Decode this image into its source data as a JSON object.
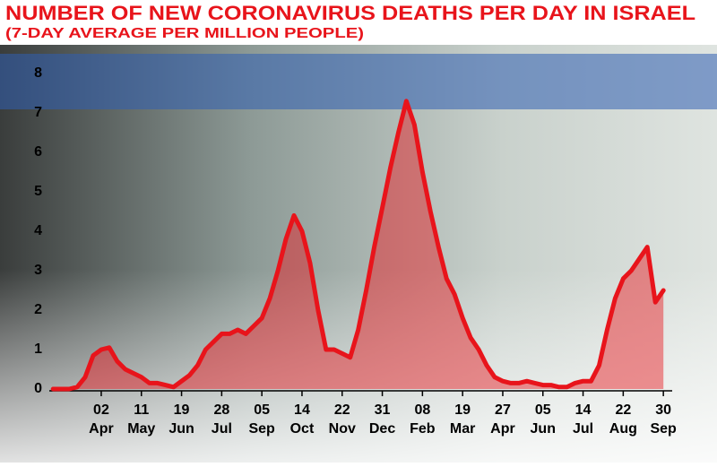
{
  "chart_data": {
    "type": "area",
    "title": "NUMBER OF NEW CORONAVIRUS DEATHS PER DAY IN ISRAEL",
    "subtitle": "(7-DAY AVERAGE PER MILLION PEOPLE)",
    "categories": [
      null,
      null,
      null,
      null,
      null,
      null,
      {
        "day": "02",
        "month": "Apr"
      },
      null,
      null,
      null,
      null,
      {
        "day": "11",
        "month": "May"
      },
      null,
      null,
      null,
      null,
      {
        "day": "19",
        "month": "Jun"
      },
      null,
      null,
      null,
      null,
      {
        "day": "28",
        "month": "Jul"
      },
      null,
      null,
      null,
      null,
      {
        "day": "05",
        "month": "Sep"
      },
      null,
      null,
      null,
      null,
      {
        "day": "14",
        "month": "Oct"
      },
      null,
      null,
      null,
      null,
      {
        "day": "22",
        "month": "Nov"
      },
      null,
      null,
      null,
      null,
      {
        "day": "31",
        "month": "Dec"
      },
      null,
      null,
      null,
      null,
      {
        "day": "08",
        "month": "Feb"
      },
      null,
      null,
      null,
      null,
      {
        "day": "19",
        "month": "Mar"
      },
      null,
      null,
      null,
      null,
      {
        "day": "27",
        "month": "Apr"
      },
      null,
      null,
      null,
      null,
      {
        "day": "05",
        "month": "Jun"
      },
      null,
      null,
      null,
      null,
      {
        "day": "14",
        "month": "Jul"
      },
      null,
      null,
      null,
      null,
      {
        "day": "22",
        "month": "Aug"
      },
      null,
      null,
      null,
      null,
      {
        "day": "30",
        "month": "Sep"
      }
    ],
    "series": [
      {
        "color": "#e8141b",
        "values": [
          0,
          0,
          0,
          0.05,
          0.3,
          0.85,
          1.0,
          1.05,
          0.7,
          0.5,
          0.4,
          0.3,
          0.15,
          0.15,
          0.1,
          0.05,
          0.2,
          0.35,
          0.6,
          1.0,
          1.2,
          1.4,
          1.4,
          1.5,
          1.4,
          1.6,
          1.8,
          2.3,
          3.0,
          3.8,
          4.4,
          4.0,
          3.2,
          2.0,
          1.0,
          1.0,
          0.9,
          0.8,
          1.5,
          2.5,
          3.6,
          4.6,
          5.6,
          6.5,
          7.3,
          6.7,
          5.5,
          4.5,
          3.6,
          2.8,
          2.4,
          1.8,
          1.3,
          1.0,
          0.6,
          0.3,
          0.2,
          0.15,
          0.15,
          0.2,
          0.15,
          0.1,
          0.1,
          0.05,
          0.05,
          0.15,
          0.2,
          0.2,
          0.6,
          1.5,
          2.3,
          2.8,
          3.0,
          3.3,
          3.6,
          2.2,
          2.5
        ]
      }
    ],
    "ylim": [
      0,
      8
    ],
    "yticks": [
      0,
      1,
      2,
      3,
      4,
      5,
      6,
      7,
      8
    ]
  }
}
